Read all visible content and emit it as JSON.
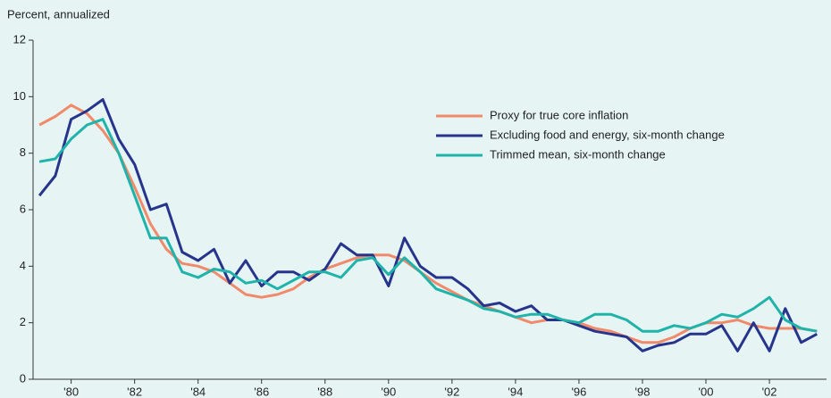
{
  "chart_data": {
    "type": "line",
    "ylabel": "Percent, annualized",
    "x": [
      1979,
      1979.5,
      1980,
      1980.5,
      1981,
      1981.5,
      1982,
      1982.5,
      1983,
      1983.5,
      1984,
      1984.5,
      1985,
      1985.5,
      1986,
      1986.5,
      1987,
      1987.5,
      1988,
      1988.5,
      1989,
      1989.5,
      1990,
      1990.5,
      1991,
      1991.5,
      1992,
      1992.5,
      1993,
      1993.5,
      1994,
      1994.5,
      1995,
      1995.5,
      1996,
      1996.5,
      1997,
      1997.5,
      1998,
      1998.5,
      1999,
      1999.5,
      2000,
      2000.5,
      2001,
      2001.5,
      2002,
      2002.5,
      2003,
      2003.5
    ],
    "series": [
      {
        "name": "Proxy for true core inflation",
        "color": "#f08a6a",
        "values": [
          9.0,
          9.3,
          9.7,
          9.4,
          8.8,
          8.0,
          6.8,
          5.5,
          4.6,
          4.1,
          4.0,
          3.8,
          3.4,
          3.0,
          2.9,
          3.0,
          3.2,
          3.6,
          3.9,
          4.1,
          4.3,
          4.4,
          4.4,
          4.2,
          3.8,
          3.4,
          3.1,
          2.8,
          2.6,
          2.4,
          2.2,
          2.0,
          2.1,
          2.1,
          2.0,
          1.8,
          1.7,
          1.5,
          1.3,
          1.3,
          1.5,
          1.8,
          2.0,
          2.0,
          2.1,
          1.9,
          1.8,
          1.8,
          1.8,
          1.7
        ]
      },
      {
        "name": "Excluding food and energy, six-month change",
        "color": "#27348b",
        "values": [
          6.5,
          7.2,
          9.2,
          9.5,
          9.9,
          8.5,
          7.6,
          6.0,
          6.2,
          4.5,
          4.2,
          4.6,
          3.4,
          4.2,
          3.3,
          3.8,
          3.8,
          3.5,
          3.9,
          4.8,
          4.4,
          4.4,
          3.3,
          5.0,
          4.0,
          3.6,
          3.6,
          3.2,
          2.6,
          2.7,
          2.4,
          2.6,
          2.1,
          2.1,
          1.9,
          1.7,
          1.6,
          1.5,
          1.0,
          1.2,
          1.3,
          1.6,
          1.6,
          1.9,
          1.0,
          2.0,
          1.0,
          2.5,
          1.3,
          1.6
        ]
      },
      {
        "name": "Trimmed mean, six-month change",
        "color": "#1fb3aa",
        "values": [
          7.7,
          7.8,
          8.5,
          9.0,
          9.2,
          8.0,
          6.5,
          5.0,
          5.0,
          3.8,
          3.6,
          3.9,
          3.8,
          3.4,
          3.5,
          3.2,
          3.5,
          3.8,
          3.8,
          3.6,
          4.2,
          4.3,
          3.7,
          4.3,
          3.8,
          3.2,
          3.0,
          2.8,
          2.5,
          2.4,
          2.2,
          2.3,
          2.3,
          2.1,
          2.0,
          2.3,
          2.3,
          2.1,
          1.7,
          1.7,
          1.9,
          1.8,
          2.0,
          2.3,
          2.2,
          2.5,
          2.9,
          2.1,
          1.8,
          1.7
        ]
      }
    ],
    "xlim": [
      1978.8,
      2003.8
    ],
    "xticks": [
      {
        "value": 1980,
        "label": "'80"
      },
      {
        "value": 1982,
        "label": "'82"
      },
      {
        "value": 1984,
        "label": "'84"
      },
      {
        "value": 1986,
        "label": "'86"
      },
      {
        "value": 1988,
        "label": "'88"
      },
      {
        "value": 1990,
        "label": "'90"
      },
      {
        "value": 1992,
        "label": "'92"
      },
      {
        "value": 1994,
        "label": "'94"
      },
      {
        "value": 1996,
        "label": "'96"
      },
      {
        "value": 1998,
        "label": "'98"
      },
      {
        "value": 2000,
        "label": "'00"
      },
      {
        "value": 2002,
        "label": "'02"
      }
    ],
    "ylim": [
      0,
      12
    ],
    "yticks": [
      0,
      2,
      4,
      6,
      8,
      10,
      12
    ]
  }
}
